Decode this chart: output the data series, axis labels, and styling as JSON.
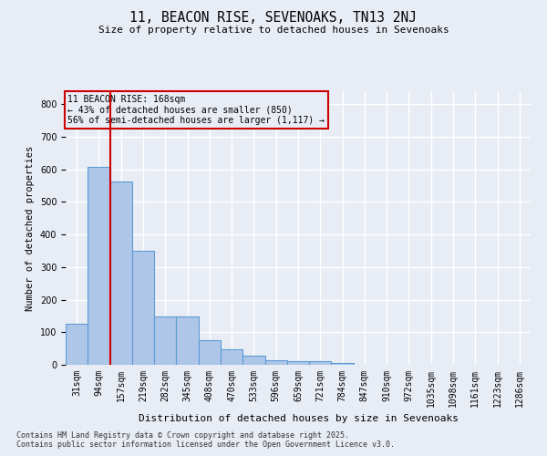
{
  "title_line1": "11, BEACON RISE, SEVENOAKS, TN13 2NJ",
  "title_line2": "Size of property relative to detached houses in Sevenoaks",
  "xlabel": "Distribution of detached houses by size in Sevenoaks",
  "ylabel": "Number of detached properties",
  "categories": [
    "31sqm",
    "94sqm",
    "157sqm",
    "219sqm",
    "282sqm",
    "345sqm",
    "408sqm",
    "470sqm",
    "533sqm",
    "596sqm",
    "659sqm",
    "721sqm",
    "784sqm",
    "847sqm",
    "910sqm",
    "972sqm",
    "1035sqm",
    "1098sqm",
    "1161sqm",
    "1223sqm",
    "1286sqm"
  ],
  "values": [
    125,
    607,
    563,
    350,
    148,
    148,
    75,
    47,
    28,
    15,
    12,
    12,
    5,
    0,
    0,
    0,
    0,
    0,
    0,
    0,
    0
  ],
  "bar_color": "#aec6e8",
  "bar_edge_color": "#5b9bd5",
  "bg_color": "#e8edf5",
  "grid_color": "#ffffff",
  "vline_x": 1.5,
  "vline_color": "#cc0000",
  "annotation_text": "11 BEACON RISE: 168sqm\n← 43% of detached houses are smaller (850)\n56% of semi-detached houses are larger (1,117) →",
  "annotation_box_color": "#cc0000",
  "ylim": [
    0,
    840
  ],
  "yticks": [
    0,
    100,
    200,
    300,
    400,
    500,
    600,
    700,
    800
  ],
  "footnote": "Contains HM Land Registry data © Crown copyright and database right 2025.\nContains public sector information licensed under the Open Government Licence v3.0."
}
